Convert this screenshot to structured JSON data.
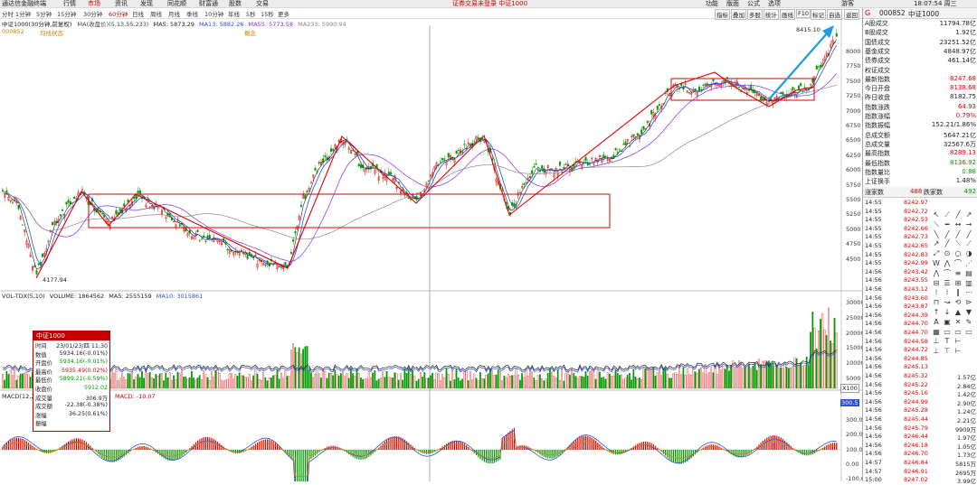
{
  "topbar": {
    "title": "通达信金融终端",
    "menus": [
      "行情",
      "市场",
      "资讯",
      "发现",
      "同花顺",
      "财富通",
      "股数",
      "交易"
    ],
    "center": "证券交易未登录 中证1000",
    "right_menus": [
      "功能",
      "版面",
      "公式",
      "选项"
    ],
    "right_extra": "游客",
    "clock": "18:07:54 周三"
  },
  "periods": [
    "分时",
    "1分钟",
    "5分钟",
    "15分钟",
    "30分钟",
    "60分钟",
    "日线",
    "周线",
    "月线",
    "季线",
    "10分钟",
    "年线",
    "5秒",
    "15秒",
    "更多"
  ],
  "right_tools": [
    "指标",
    "叠加",
    "多股",
    "统计",
    "画线",
    "F10",
    "标记",
    "自选",
    "返回"
  ],
  "kline": {
    "title": "中证1000(30分钟,前复权)",
    "ma_label": "MA(收盘价)(5,13,55,233)",
    "ma5": "MA5: 5873.29",
    "ma13": "MA13: 5882.26",
    "ma55": "MA55: 5773.58",
    "ma233": "MA233: 5990.94",
    "sub_left": "000852",
    "sub_mid": "均线状态",
    "sub_mid2": "概念",
    "high_label": "8415.10",
    "low_label": "4177.94",
    "yaxis": [
      "8000",
      "7750",
      "7500",
      "7250",
      "7000",
      "6750",
      "6500",
      "6250",
      "6000",
      "5750",
      "5500",
      "5250",
      "5000",
      "4750",
      "4500"
    ],
    "colors": {
      "up": "#e00000",
      "down": "#009a00",
      "ma5": "#222222",
      "ma13": "#2d4fd8",
      "ma55": "#8a2be2",
      "ma233": "#888888",
      "arrow": "#1e9be6"
    }
  },
  "volume": {
    "title": "VOL-TDX(5,10)",
    "volume": "VOLUME: 1864562",
    "ma5": "MA5: 2555159",
    "ma10": "MA10: 3015861",
    "yaxis": [
      "30000",
      "25000",
      "20000",
      "15000",
      "10000",
      "5000"
    ],
    "unit": "X100"
  },
  "macd": {
    "title": "MACD(12,26,9)",
    "macd": "MACD: -10.07",
    "yaxis": [
      "300.0",
      "200.0",
      "100.0",
      "0.00",
      "-100.0"
    ],
    "box": "300.5"
  },
  "tooltip": {
    "title": "中证1000",
    "rows": [
      [
        "时间",
        "23/01/23/四 11:30"
      ],
      [
        "数值",
        "5934.16(-0.01%)"
      ],
      [
        "开盘价",
        "5934.16(-0.01%)"
      ],
      [
        "最高价",
        "5935.49(0.02%)"
      ],
      [
        "最低价",
        "5899.21(-0.59%)"
      ],
      [
        "收盘价",
        "5912.02"
      ],
      [
        "成交量",
        "306.9万"
      ],
      [
        "成交额",
        "-22.38(-0.38%)"
      ],
      [
        "涨幅",
        "36.25(0.61%)"
      ],
      [
        "振幅",
        ""
      ]
    ]
  },
  "rightpanel": {
    "code": "000852",
    "name": "中证1000",
    "stats": [
      [
        "A股成交",
        "11794.78亿",
        "#222"
      ],
      [
        "B股成交",
        "1.92亿",
        "#222"
      ],
      [
        "国债成交",
        "23251.52亿",
        "#222"
      ],
      [
        "基金成交",
        "4848.97亿",
        "#222"
      ],
      [
        "债券成交",
        "461.14亿",
        "#222"
      ],
      [
        "权证成交",
        "",
        "#222"
      ],
      [
        "最新指数",
        "8247.68",
        "#e00000"
      ],
      [
        "今日开盘",
        "8138.68",
        "#e00000"
      ],
      [
        "昨日收盘",
        "8182.75",
        "#222"
      ],
      [
        "指数涨跌",
        "64.93",
        "#e00000"
      ],
      [
        "指数涨幅",
        "0.79%",
        "#e00000"
      ],
      [
        "指数振幅",
        "152.21/1.86%",
        "#222"
      ],
      [
        "总成交额",
        "5647.21亿",
        "#222"
      ],
      [
        "总成交量",
        "32567.6万",
        "#222"
      ],
      [
        "最高指数",
        "8289.13",
        "#e00000"
      ],
      [
        "最低指数",
        "8136.92",
        "#009a00"
      ],
      [
        "指数量比",
        "0.88",
        "#009a00"
      ],
      [
        "上证换手",
        "1.48%",
        "#222"
      ]
    ],
    "up_label": "涨家数",
    "up_val": "488",
    "down_label": "跌家数",
    "down_val": "492",
    "trades": [
      [
        "14:55",
        "8242.97",
        ""
      ],
      [
        "14:55",
        "8242.72",
        ""
      ],
      [
        "14:55",
        "8242.53",
        ""
      ],
      [
        "14:55",
        "8242.66",
        ""
      ],
      [
        "14:55",
        "8242.73",
        ""
      ],
      [
        "14:55",
        "8242.65",
        ""
      ],
      [
        "14:55",
        "8242.83",
        ""
      ],
      [
        "14:55",
        "8242.99",
        ""
      ],
      [
        "14:56",
        "8243.42",
        ""
      ],
      [
        "14:56",
        "8243.55",
        ""
      ],
      [
        "14:56",
        "8243.12",
        ""
      ],
      [
        "14:56",
        "8243.60",
        ""
      ],
      [
        "14:56",
        "8243.87",
        ""
      ],
      [
        "14:56",
        "8244.39",
        ""
      ],
      [
        "14:56",
        "8244.70",
        ""
      ],
      [
        "14:56",
        "8244.70",
        ""
      ],
      [
        "14:56",
        "8244.58",
        ""
      ],
      [
        "14:56",
        "8244.72",
        ""
      ],
      [
        "14:56",
        "8244.85",
        ""
      ],
      [
        "14:56",
        "8245.13",
        ""
      ],
      [
        "14:56",
        "8245.32",
        "1.57亿"
      ],
      [
        "14:56",
        "8245.22",
        "2.84亿"
      ],
      [
        "14:56",
        "8245.16",
        "1.42亿"
      ],
      [
        "14:56",
        "8244.99",
        "2.90亿"
      ],
      [
        "14:56",
        "8245.28",
        "1.24亿"
      ],
      [
        "14:56",
        "8245.44",
        "2.21亿"
      ],
      [
        "14:56",
        "8245.79",
        "9909万"
      ],
      [
        "14:56",
        "8246.44",
        "1.97亿"
      ],
      [
        "14:56",
        "8246.18",
        "1.05亿"
      ],
      [
        "14:56",
        "8246.70",
        "1.73亿"
      ],
      [
        "14:57",
        "8246.84",
        "5815万"
      ],
      [
        "14:57",
        "8246.91",
        "2695万"
      ],
      [
        "15:00",
        "8247.02",
        "3.99亿"
      ]
    ]
  }
}
